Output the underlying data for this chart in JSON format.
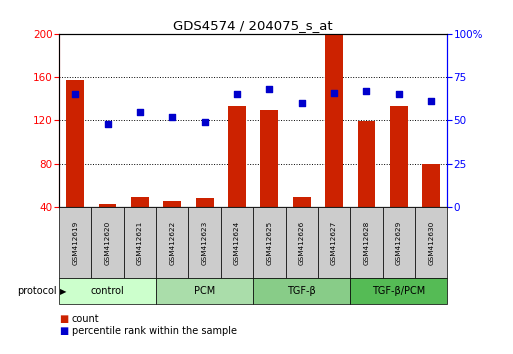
{
  "title": "GDS4574 / 204075_s_at",
  "samples": [
    "GSM412619",
    "GSM412620",
    "GSM412621",
    "GSM412622",
    "GSM412623",
    "GSM412624",
    "GSM412625",
    "GSM412626",
    "GSM412627",
    "GSM412628",
    "GSM412629",
    "GSM412630"
  ],
  "count_values": [
    157,
    43,
    49,
    46,
    48,
    133,
    130,
    49,
    200,
    119,
    133,
    80
  ],
  "percentile_values": [
    65,
    48,
    55,
    52,
    49,
    65,
    68,
    60,
    66,
    67,
    65,
    61
  ],
  "groups": [
    {
      "label": "control",
      "start": 0,
      "end": 3,
      "color": "#ccffcc"
    },
    {
      "label": "PCM",
      "start": 3,
      "end": 6,
      "color": "#aaddaa"
    },
    {
      "label": "TGF-β",
      "start": 6,
      "end": 9,
      "color": "#88cc88"
    },
    {
      "label": "TGF-β/PCM",
      "start": 9,
      "end": 12,
      "color": "#55bb55"
    }
  ],
  "left_ylim": [
    40,
    200
  ],
  "left_yticks": [
    40,
    80,
    120,
    160,
    200
  ],
  "right_ylim": [
    0,
    100
  ],
  "right_yticks": [
    0,
    25,
    50,
    75,
    100
  ],
  "right_yticklabels": [
    "0",
    "25",
    "50",
    "75",
    "100%"
  ],
  "bar_color": "#cc2200",
  "dot_color": "#0000cc",
  "bar_width": 0.55,
  "bg_color": "#ffffff",
  "sample_bg_color": "#cccccc",
  "legend_count_label": "count",
  "legend_pct_label": "percentile rank within the sample"
}
